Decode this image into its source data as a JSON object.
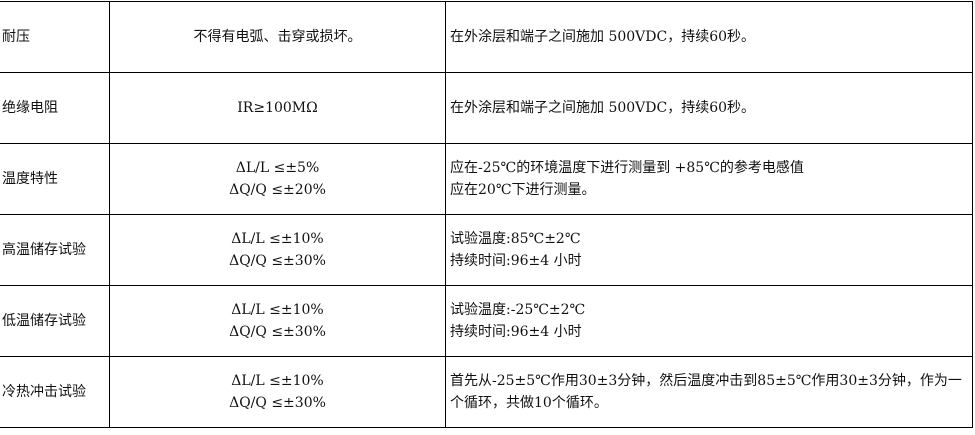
{
  "rows": [
    {
      "item": "耐压",
      "requirement": [
        "不得有电弧、击穿或损坏。"
      ],
      "condition": [
        "在外涂层和端子之间施加 500VDC，持续60秒。"
      ]
    },
    {
      "item": "绝缘电阻",
      "requirement": [
        "IR≥100MΩ"
      ],
      "condition": [
        "在外涂层和端子之间施加 500VDC，持续60秒。"
      ]
    },
    {
      "item": "温度特性",
      "requirement": [
        "ΔL/L  ≤±5%",
        "ΔQ/Q  ≤±20%"
      ],
      "condition": [
        "应在-25℃的环境温度下进行测量到 +85℃的参考电感值",
        "应在20℃下进行测量。"
      ]
    },
    {
      "item": "高温储存试验",
      "requirement": [
        "ΔL/L  ≤±10%",
        "ΔQ/Q  ≤±30%"
      ],
      "condition": [
        "试验温度:85℃±2℃",
        "持续时间:96±4 小时"
      ]
    },
    {
      "item": "低温储存试验",
      "requirement": [
        "ΔL/L  ≤±10%",
        "ΔQ/Q  ≤±30%"
      ],
      "condition": [
        "试验温度:-25℃±2℃",
        "持续时间:96±4 小时"
      ]
    },
    {
      "item": "冷热冲击试验",
      "requirement": [
        "ΔL/L  ≤±10%",
        "ΔQ/Q  ≤±30%"
      ],
      "condition": [
        "首先从-25±5℃作用30±3分钟，然后温度冲击到85±5℃作用30±3分钟，作为一个循环，共做10个循环。"
      ]
    }
  ]
}
